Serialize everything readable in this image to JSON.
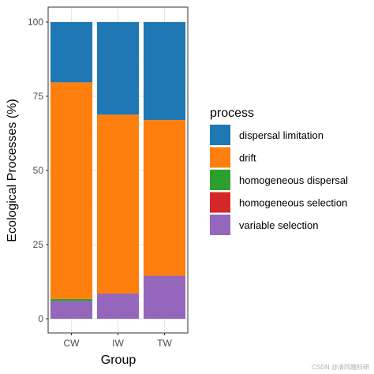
{
  "chart_data": {
    "type": "bar",
    "stacked": true,
    "title": "",
    "xlabel": "Group",
    "ylabel": "Ecological Processes (%)",
    "ylim": [
      0,
      100
    ],
    "yticks": [
      0,
      25,
      50,
      75,
      100
    ],
    "grid": true,
    "legend_title": "process",
    "legend_position": "right",
    "categories": [
      "CW",
      "IW",
      "TW"
    ],
    "series": [
      {
        "name": "variable selection",
        "color": "#9467bd",
        "values": [
          6.0,
          8.5,
          14.5
        ]
      },
      {
        "name": "homogeneous selection",
        "color": "#d62728",
        "values": [
          0.0,
          0.0,
          0.0
        ]
      },
      {
        "name": "homogeneous dispersal",
        "color": "#2ca02c",
        "values": [
          0.7,
          0.0,
          0.0
        ]
      },
      {
        "name": "drift",
        "color": "#ff7f0e",
        "values": [
          73.0,
          60.3,
          52.5
        ]
      },
      {
        "name": "dispersal limitation",
        "color": "#1f77b4",
        "values": [
          20.3,
          31.2,
          33.0
        ]
      }
    ],
    "legend_order": [
      "dispersal limitation",
      "drift",
      "homogeneous dispersal",
      "homogeneous selection",
      "variable selection"
    ]
  },
  "watermark": "CSDN @清同趣科研"
}
